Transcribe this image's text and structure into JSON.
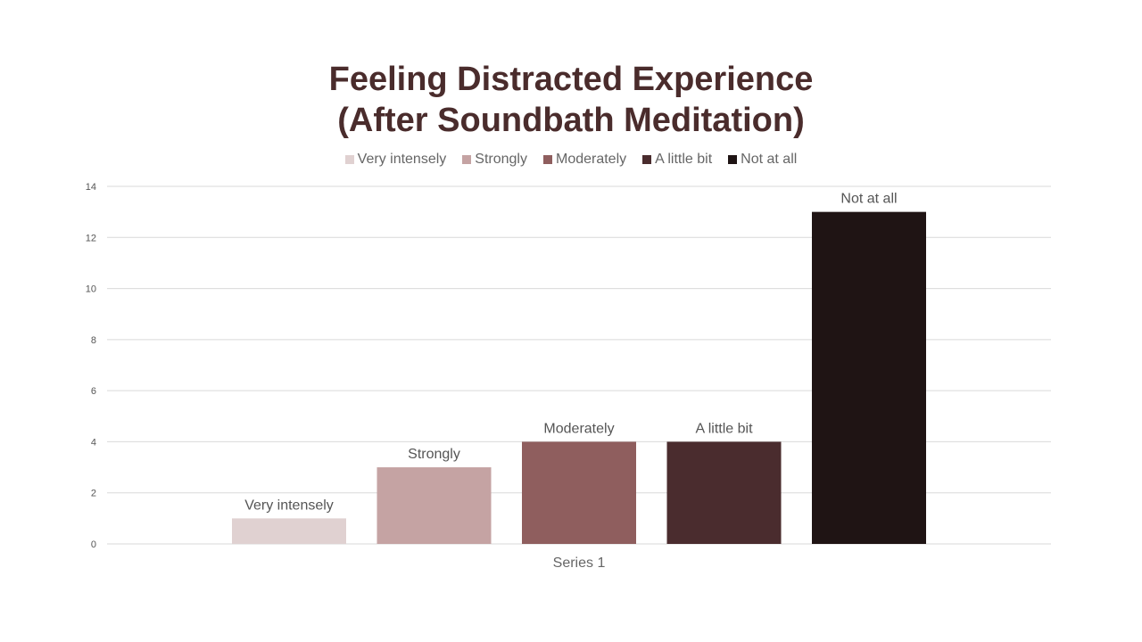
{
  "chart_data": {
    "type": "bar",
    "title_lines": [
      "Feeling Distracted Experience",
      "(After Soundbath Meditation)"
    ],
    "xlabel": "Series 1",
    "ylabel": "",
    "ylim": [
      0,
      14
    ],
    "yticks": [
      0,
      2,
      4,
      6,
      8,
      10,
      12,
      14
    ],
    "yticks_labels": [
      "0",
      "2",
      "4",
      "6",
      "8",
      "10",
      "12",
      "14"
    ],
    "grid": true,
    "legend_position": "top-center",
    "series": [
      {
        "name": "Very intensely",
        "value": 1,
        "color": "#e0d1d1"
      },
      {
        "name": "Strongly",
        "value": 3,
        "color": "#c5a3a3"
      },
      {
        "name": "Moderately",
        "value": 4,
        "color": "#8f5e5e"
      },
      {
        "name": "A little bit",
        "value": 4,
        "color": "#4a2c2e"
      },
      {
        "name": "Not at all",
        "value": 13,
        "color": "#1f1414"
      }
    ]
  }
}
